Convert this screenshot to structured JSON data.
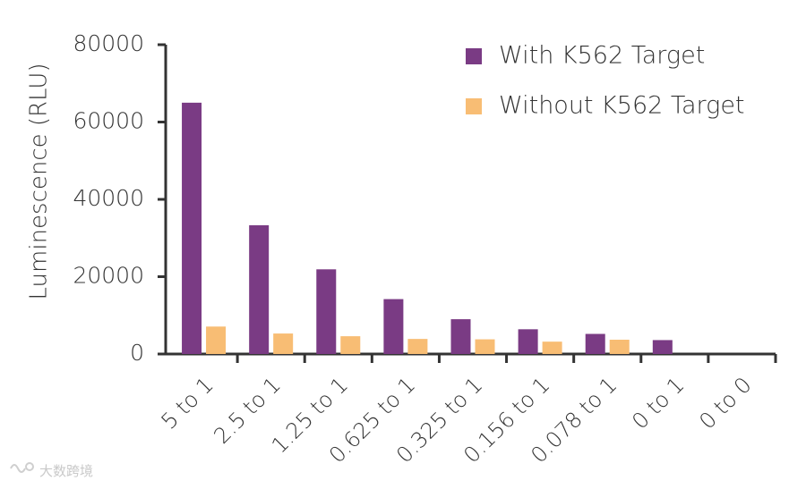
{
  "chart_data": {
    "type": "bar",
    "title": "",
    "xlabel": "",
    "ylabel": "Luminescence (RLU)",
    "ylim": [
      0,
      80000
    ],
    "yticks": [
      0,
      20000,
      40000,
      60000,
      80000
    ],
    "grid": false,
    "legend_position": "top-right",
    "categories": [
      "5 to 1",
      "2.5 to  1",
      "1.25 to 1",
      "0.625 to 1",
      "0.325 to 1",
      "0.156 to 1",
      "0.078 to 1",
      "0 to 1",
      "0 to 0"
    ],
    "series": [
      {
        "name": "With K562 Target",
        "color": "#7a3b84",
        "values": [
          65000,
          33300,
          21900,
          14200,
          9000,
          6400,
          5200,
          3600,
          0
        ]
      },
      {
        "name": "Without K562 Target",
        "color": "#f8bd74",
        "values": [
          7100,
          5300,
          4600,
          3900,
          3800,
          3200,
          3700,
          0,
          0
        ]
      }
    ]
  },
  "watermark": {
    "text": "大数跨境"
  }
}
